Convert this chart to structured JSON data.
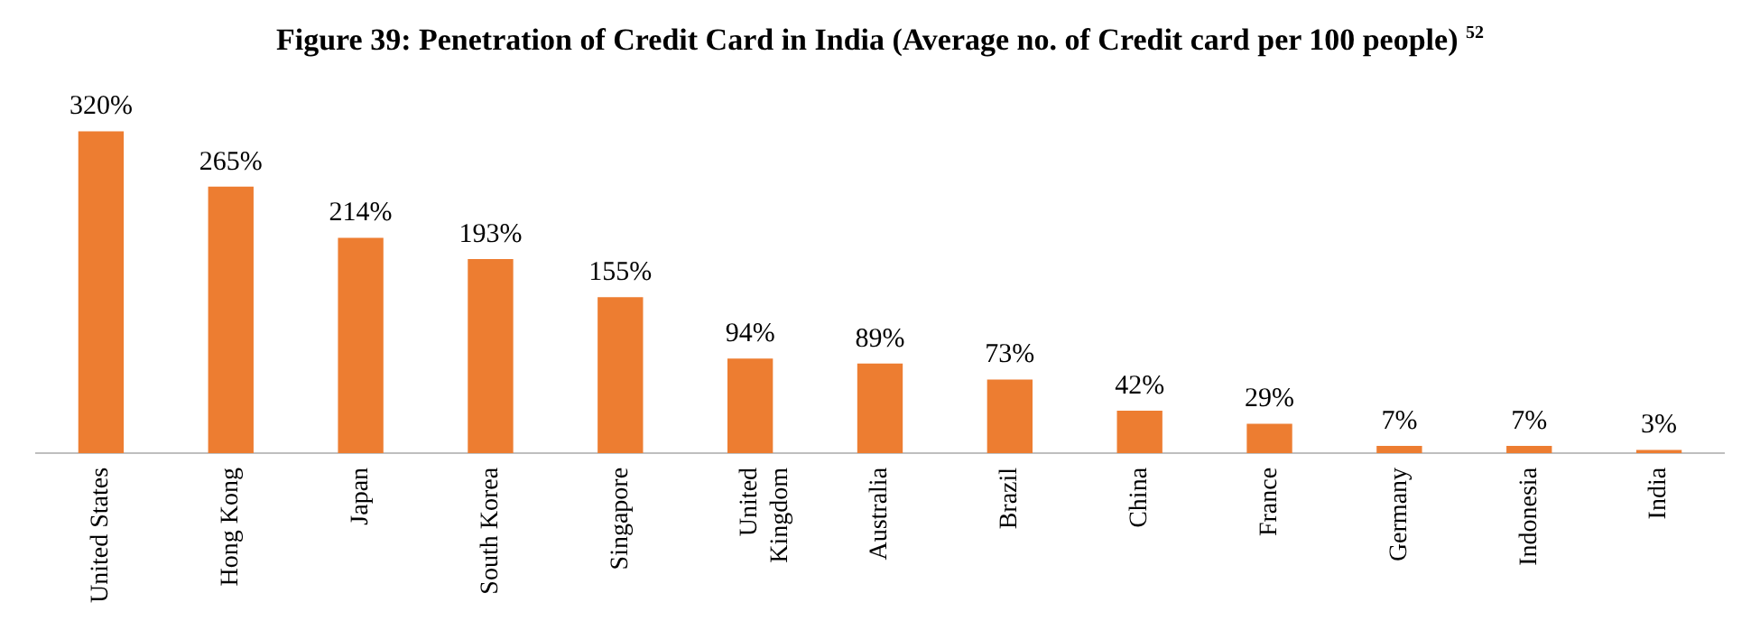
{
  "chart_data": {
    "type": "bar",
    "title": "Figure 39: Penetration of Credit Card in India (Average no. of Credit card per 100 people) $^{52}$",
    "categories": [
      "United States",
      "Hong Kong",
      "Japan",
      "South Korea",
      "Singapore",
      "United Kingdom",
      "Australia",
      "Brazil",
      "China",
      "France",
      "Germany",
      "Indonesia",
      "India"
    ],
    "values": [
      320,
      265,
      214,
      193,
      155,
      94,
      89,
      73,
      42,
      29,
      7,
      7,
      3
    ],
    "value_labels": [
      "320%",
      "265%",
      "214%",
      "193%",
      "155%",
      "94%",
      "89%",
      "73%",
      "42%",
      "29%",
      "7%",
      "7%",
      "3%"
    ],
    "color": "#ed7d31",
    "grid": false,
    "legend": false
  }
}
